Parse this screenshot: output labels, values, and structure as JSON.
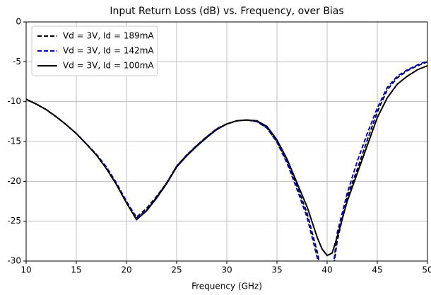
{
  "chart_data": {
    "type": "line",
    "title": "Input Return Loss (dB) vs. Frequency, over Bias",
    "x_label": "Frequency (GHz)",
    "x": [
      10,
      11,
      12,
      13,
      14,
      15,
      16,
      17,
      18,
      19,
      20,
      21,
      22,
      23,
      24,
      25,
      26,
      27,
      28,
      29,
      30,
      31,
      32,
      33,
      34,
      35,
      36,
      37,
      38,
      39,
      39.5,
      40,
      40.5,
      41,
      42,
      43,
      44,
      45,
      46,
      47,
      48,
      49,
      50
    ],
    "series": [
      {
        "name": "Vd = 3V, Id = 189mA",
        "color": "#000000",
        "dash": true,
        "values": [
          -9.7,
          -10.3,
          -11.0,
          -11.9,
          -12.9,
          -14.0,
          -15.3,
          -16.7,
          -18.3,
          -20.3,
          -22.6,
          -24.5,
          -23.4,
          -21.9,
          -20.2,
          -18.1,
          -16.7,
          -15.5,
          -14.4,
          -13.4,
          -12.8,
          -12.4,
          -12.3,
          -12.5,
          -13.3,
          -15.0,
          -17.5,
          -20.6,
          -24.0,
          -28.8,
          -32,
          -32,
          -32,
          -27.5,
          -22.0,
          -18.5,
          -14.8,
          -11.3,
          -8.5,
          -7.0,
          -6.1,
          -5.5,
          -5.0
        ]
      },
      {
        "name": "Vd = 3V, Id = 142mA",
        "color": "#0000cc",
        "dash": true,
        "values": [
          -9.7,
          -10.3,
          -11.0,
          -11.9,
          -12.9,
          -14.0,
          -15.3,
          -16.6,
          -18.2,
          -20.2,
          -22.5,
          -24.6,
          -23.6,
          -22.0,
          -20.2,
          -18.1,
          -16.7,
          -15.5,
          -14.4,
          -13.4,
          -12.8,
          -12.4,
          -12.3,
          -12.5,
          -13.3,
          -15.1,
          -17.7,
          -21.0,
          -24.5,
          -29.5,
          -32,
          -32,
          -32,
          -26.5,
          -21.5,
          -17.5,
          -14.0,
          -10.8,
          -8.2,
          -6.8,
          -6.0,
          -5.4,
          -4.9
        ]
      },
      {
        "name": "Vd = 3V, Id = 100mA",
        "color": "#000000",
        "dash": false,
        "values": [
          -9.7,
          -10.3,
          -11.0,
          -11.9,
          -12.9,
          -14.0,
          -15.3,
          -16.7,
          -18.4,
          -20.4,
          -22.7,
          -24.8,
          -23.7,
          -22.1,
          -20.3,
          -18.2,
          -16.8,
          -15.6,
          -14.5,
          -13.5,
          -12.8,
          -12.4,
          -12.3,
          -12.4,
          -13.1,
          -14.8,
          -17.2,
          -20.2,
          -23.2,
          -27.0,
          -28.5,
          -29.3,
          -29.0,
          -27.0,
          -22.5,
          -19.0,
          -15.5,
          -12.0,
          -9.5,
          -7.8,
          -6.8,
          -6.0,
          -5.5
        ]
      }
    ],
    "xlim": [
      10,
      50
    ],
    "xticks": [
      10,
      15,
      20,
      25,
      30,
      35,
      40,
      45,
      50
    ],
    "ylim": [
      -30,
      0
    ],
    "yticks": [
      0,
      -5,
      -10,
      -15,
      -20,
      -25,
      -30
    ],
    "grid": true,
    "legend": "upper left"
  }
}
